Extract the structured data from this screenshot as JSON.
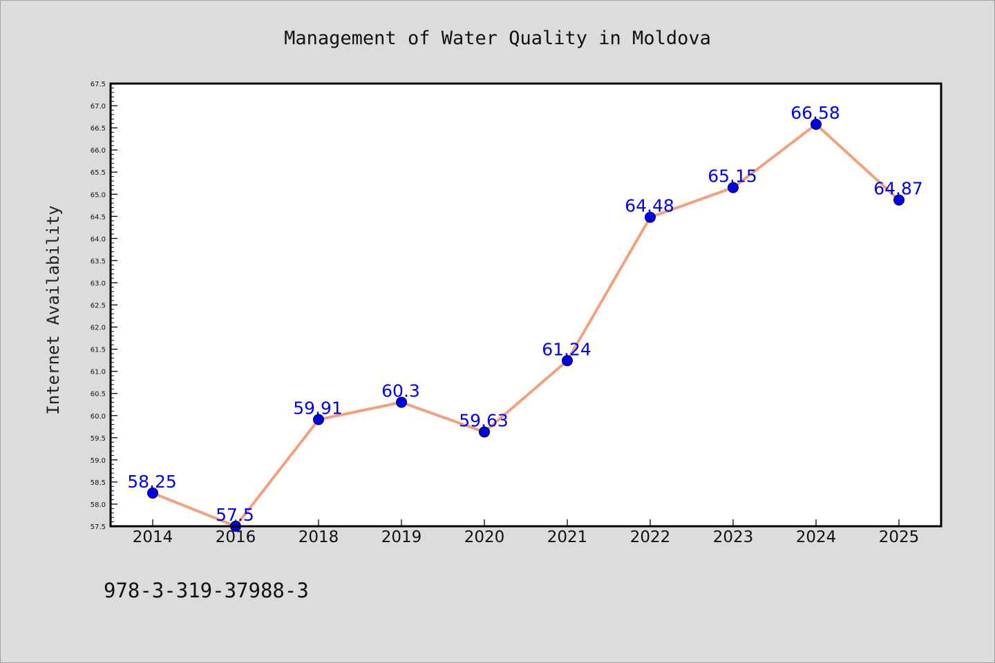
{
  "chart_data": {
    "type": "line",
    "title": "Management of Water Quality in Moldova",
    "xlabel": "",
    "ylabel": "Internet Availability",
    "categories": [
      "2014",
      "2016",
      "2018",
      "2019",
      "2020",
      "2021",
      "2022",
      "2023",
      "2024",
      "2025"
    ],
    "series": [
      {
        "values": [
          58.25,
          57.5,
          59.91,
          60.3,
          59.63,
          61.24,
          64.48,
          65.15,
          66.58,
          64.87
        ],
        "labels": [
          "58.25",
          "57.5",
          "59.91",
          "60.3",
          "59.63",
          "61.24",
          "64.48",
          "65.15",
          "66.58",
          "64.87"
        ]
      }
    ],
    "ylim": [
      57.5,
      67.5
    ],
    "y_major_step": 0.5,
    "y_tick_labels": [
      "57.5",
      "58.0",
      "58.5",
      "59.0",
      "59.5",
      "60.0",
      "60.5",
      "61.0",
      "61.5",
      "62.0",
      "62.5",
      "63.0",
      "63.5",
      "64.0",
      "64.5",
      "65.0",
      "65.5",
      "66.0",
      "66.5",
      "67.0",
      "67.5"
    ],
    "grid": false,
    "legend": "none",
    "line_color": "#f4a07c",
    "marker_color": "#0000ee",
    "label_color": "#0000ee",
    "background_color": "#dcdcdc",
    "plot_background_color": "#ffffff"
  },
  "footer": {
    "code": "978-3-319-37988-3"
  }
}
